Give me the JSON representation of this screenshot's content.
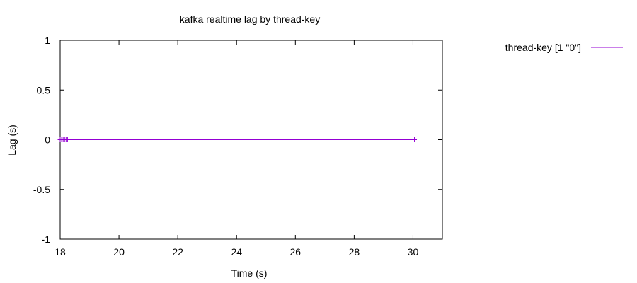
{
  "chart_data": {
    "type": "line",
    "title": "kafka realtime lag by thread-key",
    "xlabel": "Time (s)",
    "ylabel": "Lag (s)",
    "xlim": [
      18,
      31
    ],
    "ylim": [
      -1,
      1
    ],
    "x_ticks": [
      18,
      20,
      22,
      24,
      26,
      28,
      30
    ],
    "x_tick_labels": [
      "18",
      "20",
      "22",
      "24",
      "26",
      "28",
      "30"
    ],
    "y_ticks": [
      1,
      0.5,
      0,
      -0.5,
      -1
    ],
    "y_tick_labels": [
      "1",
      "0.5",
      "0",
      "-0.5",
      "-1"
    ],
    "grid": false,
    "legend_position": "right",
    "series": [
      {
        "name": "thread-key [1 \"0\"]",
        "color": "#9400d3",
        "marker": "plus",
        "x": [
          18.0,
          18.05,
          18.1,
          18.15,
          18.2,
          18.25,
          30.05
        ],
        "y": [
          0,
          0,
          0,
          0,
          0,
          0,
          0
        ]
      }
    ]
  }
}
